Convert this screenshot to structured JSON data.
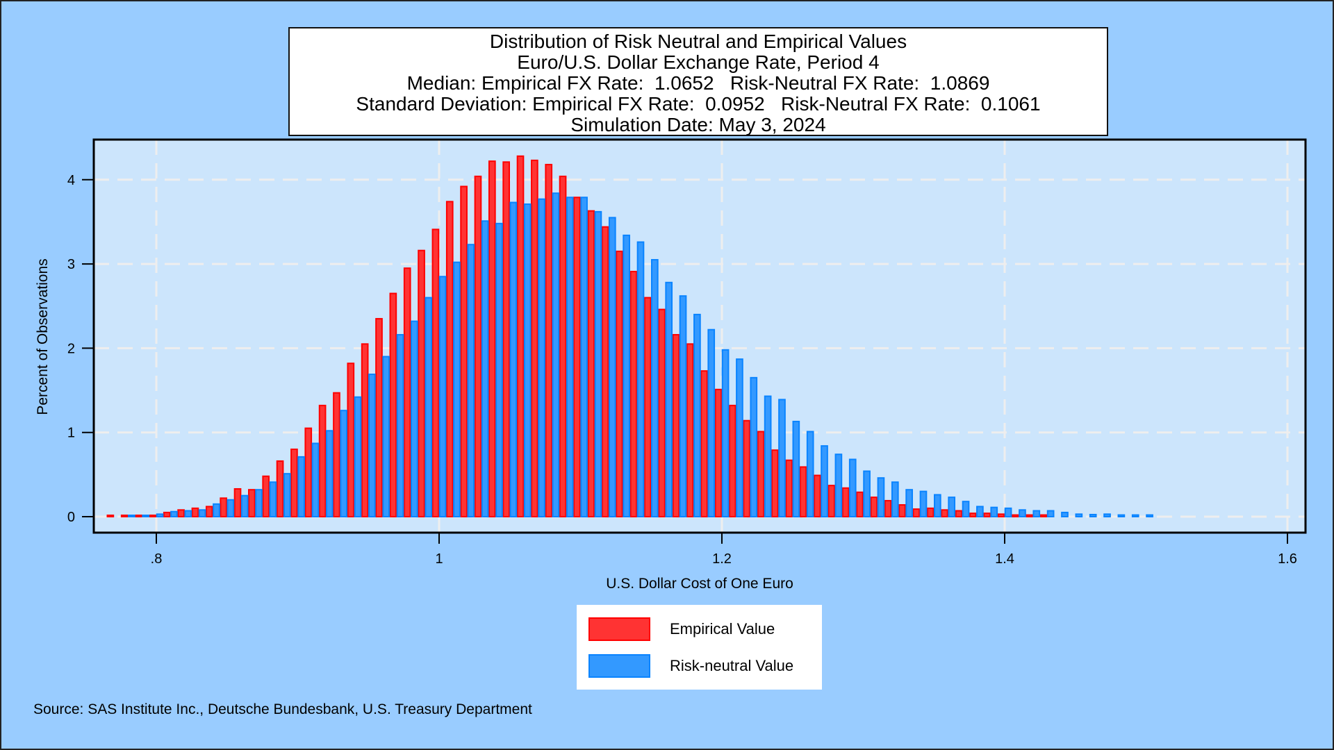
{
  "title_lines": [
    "Distribution of Risk Neutral and Empirical Values",
    "Euro/U.S. Dollar Exchange Rate, Period 4",
    "Median: Empirical FX Rate:  1.0652   Risk-Neutral FX Rate:  1.0869",
    "Standard Deviation: Empirical FX Rate:  0.0952   Risk-Neutral FX Rate:  0.1061",
    "Simulation Date: May 3, 2024"
  ],
  "legend": {
    "items": [
      {
        "label": "Empirical Value",
        "fill": "#ff3333",
        "stroke": "#ff0000"
      },
      {
        "label": "Risk-neutral Value",
        "fill": "#3399ff",
        "stroke": "#0a84ff"
      }
    ]
  },
  "source": "Source: SAS Institute Inc., Deutsche Bundesbank, U.S. Treasury Department",
  "colors": {
    "background": "#99ccff",
    "plot_background": "#cce5fc",
    "grid": "#eeeeee"
  },
  "chart_data": {
    "type": "bar",
    "title": "Distribution of Risk Neutral and Empirical Values",
    "xlabel": "U.S. Dollar Cost of One Euro",
    "ylabel": "Percent of Observations",
    "xlim": [
      0.765,
      1.605
    ],
    "ylim": [
      0,
      4.4
    ],
    "xticks": [
      0.8,
      1.0,
      1.2,
      1.4,
      1.6
    ],
    "xtick_labels": [
      ".8",
      "1",
      "1.2",
      "1.4",
      "1.6"
    ],
    "yticks": [
      0,
      1,
      2,
      3,
      4
    ],
    "ytick_labels": [
      "0",
      "1",
      "2",
      "3",
      "4"
    ],
    "grid": true,
    "legend_position": "bottom-center",
    "bin_width": 0.01,
    "x": [
      0.77,
      0.78,
      0.79,
      0.8,
      0.81,
      0.82,
      0.83,
      0.84,
      0.85,
      0.86,
      0.87,
      0.88,
      0.89,
      0.9,
      0.91,
      0.92,
      0.93,
      0.94,
      0.95,
      0.96,
      0.97,
      0.98,
      0.99,
      1.0,
      1.01,
      1.02,
      1.03,
      1.04,
      1.05,
      1.06,
      1.07,
      1.08,
      1.09,
      1.1,
      1.11,
      1.12,
      1.13,
      1.14,
      1.15,
      1.16,
      1.17,
      1.18,
      1.19,
      1.2,
      1.21,
      1.22,
      1.23,
      1.24,
      1.25,
      1.26,
      1.27,
      1.28,
      1.29,
      1.3,
      1.31,
      1.32,
      1.33,
      1.34,
      1.35,
      1.36,
      1.37,
      1.38,
      1.39,
      1.4,
      1.41,
      1.42,
      1.43,
      1.44,
      1.45,
      1.46,
      1.47,
      1.48,
      1.49,
      1.5
    ],
    "series": [
      {
        "name": "Empirical Value",
        "values": [
          0.01,
          0.01,
          0.01,
          0.01,
          0.05,
          0.08,
          0.1,
          0.12,
          0.22,
          0.33,
          0.32,
          0.48,
          0.66,
          0.8,
          1.05,
          1.32,
          1.47,
          1.82,
          2.05,
          2.35,
          2.65,
          2.95,
          3.16,
          3.41,
          3.74,
          3.92,
          4.04,
          4.22,
          4.21,
          4.28,
          4.23,
          4.18,
          4.04,
          3.79,
          3.63,
          3.44,
          3.15,
          2.91,
          2.6,
          2.46,
          2.16,
          2.05,
          1.73,
          1.51,
          1.32,
          1.14,
          1.01,
          0.79,
          0.67,
          0.59,
          0.49,
          0.37,
          0.34,
          0.29,
          0.23,
          0.19,
          0.14,
          0.09,
          0.1,
          0.08,
          0.07,
          0.04,
          0.04,
          0.03,
          0.02,
          0.02,
          0.02,
          0,
          0,
          0,
          0,
          0,
          0,
          0
        ]
      },
      {
        "name": "Risk-neutral Value",
        "values": [
          0,
          0.01,
          0.01,
          0.03,
          0.06,
          0.07,
          0.08,
          0.15,
          0.2,
          0.25,
          0.32,
          0.41,
          0.51,
          0.71,
          0.87,
          1.02,
          1.26,
          1.42,
          1.69,
          1.9,
          2.16,
          2.32,
          2.6,
          2.85,
          3.02,
          3.23,
          3.51,
          3.48,
          3.73,
          3.71,
          3.77,
          3.84,
          3.79,
          3.79,
          3.62,
          3.55,
          3.34,
          3.26,
          3.05,
          2.78,
          2.62,
          2.4,
          2.22,
          1.98,
          1.87,
          1.65,
          1.43,
          1.39,
          1.13,
          1.01,
          0.84,
          0.74,
          0.68,
          0.54,
          0.46,
          0.41,
          0.32,
          0.3,
          0.26,
          0.23,
          0.18,
          0.12,
          0.11,
          0.1,
          0.08,
          0.07,
          0.07,
          0.05,
          0.03,
          0.025,
          0.03,
          0.02,
          0.02,
          0.02
        ]
      }
    ]
  }
}
